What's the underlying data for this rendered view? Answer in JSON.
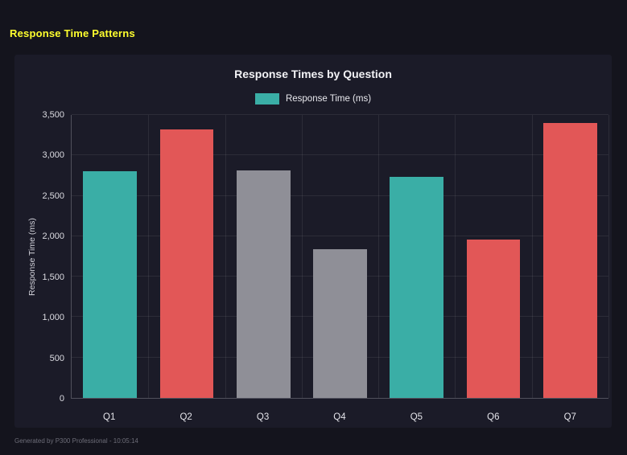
{
  "page": {
    "heading": "Response Time Patterns",
    "footer": "Generated by P300 Professional - 10:05:14"
  },
  "chart_data": {
    "type": "bar",
    "title": "Response Times by Question",
    "legend_label": "Response Time (ms)",
    "legend_color": "#3aaea6",
    "legend_position": "top",
    "categories": [
      "Q1",
      "Q2",
      "Q3",
      "Q4",
      "Q5",
      "Q6",
      "Q7"
    ],
    "values": [
      2800,
      3320,
      2810,
      1840,
      2730,
      1960,
      3400
    ],
    "bar_colors": [
      "#3aaea6",
      "#e25757",
      "#8f8f97",
      "#8f8f97",
      "#3aaea6",
      "#e25757",
      "#e25757"
    ],
    "xlabel": "",
    "ylabel": "Response Time (ms)",
    "ylim": [
      0,
      3500
    ],
    "ytick_step": 500,
    "ytick_labels": [
      "0",
      "500",
      "1,000",
      "1,500",
      "2,000",
      "2,500",
      "3,000",
      "3,500"
    ],
    "grid": true
  }
}
